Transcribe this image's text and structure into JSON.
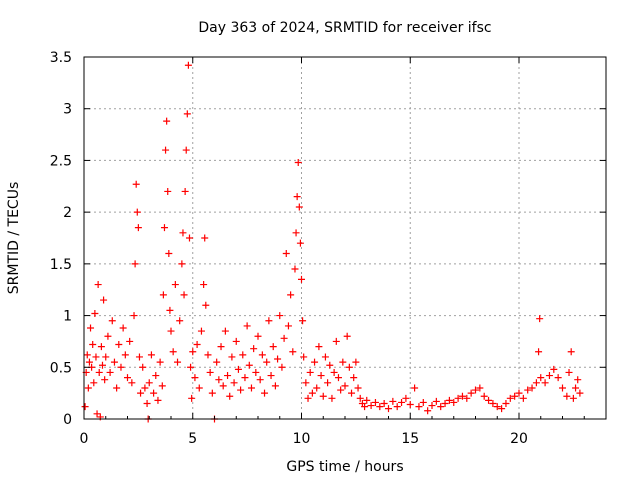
{
  "chart_data": {
    "type": "scatter",
    "title": "Day 363 of 2024, SRMTID for receiver ifsc",
    "xlabel": "GPS time / hours",
    "ylabel": "SRMTID / TECUs",
    "xlim": [
      0,
      24
    ],
    "ylim": [
      0,
      3.5
    ],
    "grid": true,
    "marker": "+",
    "x_ticks": [
      0,
      5,
      10,
      15,
      20
    ],
    "x_tick_labels": [
      "0",
      "5",
      "10",
      "15",
      "20"
    ],
    "y_ticks": [
      0,
      0.5,
      1,
      1.5,
      2,
      2.5,
      3,
      3.5
    ],
    "y_tick_labels": [
      "0",
      "0.5",
      "1",
      "1.5",
      "2",
      "2.5",
      "3",
      "3.5"
    ],
    "series": [
      {
        "name": "SRMTID",
        "color": "#ff0000",
        "points": [
          [
            0.05,
            0.12
          ],
          [
            0.1,
            0.45
          ],
          [
            0.15,
            0.62
          ],
          [
            0.2,
            0.3
          ],
          [
            0.25,
            0.55
          ],
          [
            0.3,
            0.88
          ],
          [
            0.35,
            0.5
          ],
          [
            0.4,
            0.72
          ],
          [
            0.45,
            0.35
          ],
          [
            0.5,
            1.02
          ],
          [
            0.55,
            0.6
          ],
          [
            0.6,
            0.05
          ],
          [
            0.65,
            1.3
          ],
          [
            0.7,
            0.45
          ],
          [
            0.75,
            0.02
          ],
          [
            0.8,
            0.7
          ],
          [
            0.85,
            0.52
          ],
          [
            0.9,
            1.15
          ],
          [
            0.95,
            0.38
          ],
          [
            1.0,
            0.6
          ],
          [
            1.1,
            0.8
          ],
          [
            1.2,
            0.45
          ],
          [
            1.3,
            0.95
          ],
          [
            1.4,
            0.55
          ],
          [
            1.5,
            0.3
          ],
          [
            1.6,
            0.72
          ],
          [
            1.7,
            0.5
          ],
          [
            1.8,
            0.88
          ],
          [
            1.9,
            0.62
          ],
          [
            2.0,
            0.4
          ],
          [
            2.1,
            0.75
          ],
          [
            2.2,
            0.35
          ],
          [
            2.3,
            1.0
          ],
          [
            2.35,
            1.5
          ],
          [
            2.4,
            2.27
          ],
          [
            2.45,
            2.0
          ],
          [
            2.5,
            1.85
          ],
          [
            2.55,
            0.6
          ],
          [
            2.6,
            0.25
          ],
          [
            2.7,
            0.5
          ],
          [
            2.8,
            0.3
          ],
          [
            2.9,
            0.15
          ],
          [
            2.95,
            0.0
          ],
          [
            3.0,
            0.35
          ],
          [
            3.1,
            0.62
          ],
          [
            3.2,
            0.25
          ],
          [
            3.3,
            0.42
          ],
          [
            3.4,
            0.18
          ],
          [
            3.5,
            0.55
          ],
          [
            3.6,
            0.32
          ],
          [
            3.65,
            1.2
          ],
          [
            3.7,
            1.85
          ],
          [
            3.75,
            2.6
          ],
          [
            3.8,
            2.88
          ],
          [
            3.85,
            2.2
          ],
          [
            3.9,
            1.6
          ],
          [
            3.95,
            1.05
          ],
          [
            4.0,
            0.85
          ],
          [
            4.1,
            0.65
          ],
          [
            4.2,
            1.3
          ],
          [
            4.3,
            0.55
          ],
          [
            4.4,
            0.95
          ],
          [
            4.5,
            1.5
          ],
          [
            4.55,
            1.8
          ],
          [
            4.6,
            1.2
          ],
          [
            4.65,
            2.2
          ],
          [
            4.7,
            2.6
          ],
          [
            4.75,
            2.95
          ],
          [
            4.8,
            3.42
          ],
          [
            4.85,
            1.75
          ],
          [
            4.9,
            0.5
          ],
          [
            4.95,
            0.2
          ],
          [
            5.0,
            0.65
          ],
          [
            5.1,
            0.4
          ],
          [
            5.2,
            0.72
          ],
          [
            5.3,
            0.3
          ],
          [
            5.4,
            0.85
          ],
          [
            5.5,
            1.3
          ],
          [
            5.55,
            1.75
          ],
          [
            5.6,
            1.1
          ],
          [
            5.7,
            0.62
          ],
          [
            5.8,
            0.45
          ],
          [
            5.9,
            0.25
          ],
          [
            6.0,
            0.0
          ],
          [
            6.1,
            0.55
          ],
          [
            6.2,
            0.38
          ],
          [
            6.3,
            0.7
          ],
          [
            6.4,
            0.32
          ],
          [
            6.5,
            0.85
          ],
          [
            6.6,
            0.42
          ],
          [
            6.7,
            0.22
          ],
          [
            6.8,
            0.6
          ],
          [
            6.9,
            0.35
          ],
          [
            7.0,
            0.75
          ],
          [
            7.1,
            0.48
          ],
          [
            7.2,
            0.28
          ],
          [
            7.3,
            0.62
          ],
          [
            7.4,
            0.4
          ],
          [
            7.5,
            0.9
          ],
          [
            7.6,
            0.52
          ],
          [
            7.7,
            0.3
          ],
          [
            7.8,
            0.68
          ],
          [
            7.9,
            0.45
          ],
          [
            8.0,
            0.8
          ],
          [
            8.1,
            0.38
          ],
          [
            8.2,
            0.62
          ],
          [
            8.3,
            0.25
          ],
          [
            8.4,
            0.55
          ],
          [
            8.5,
            0.95
          ],
          [
            8.6,
            0.42
          ],
          [
            8.7,
            0.7
          ],
          [
            8.8,
            0.32
          ],
          [
            8.9,
            0.58
          ],
          [
            9.0,
            1.0
          ],
          [
            9.1,
            0.5
          ],
          [
            9.2,
            0.78
          ],
          [
            9.3,
            1.6
          ],
          [
            9.4,
            0.9
          ],
          [
            9.5,
            1.2
          ],
          [
            9.6,
            0.65
          ],
          [
            9.7,
            1.45
          ],
          [
            9.75,
            1.8
          ],
          [
            9.8,
            2.15
          ],
          [
            9.85,
            2.48
          ],
          [
            9.9,
            2.05
          ],
          [
            9.95,
            1.7
          ],
          [
            10.0,
            1.35
          ],
          [
            10.05,
            0.95
          ],
          [
            10.1,
            0.6
          ],
          [
            10.2,
            0.35
          ],
          [
            10.3,
            0.2
          ],
          [
            10.4,
            0.45
          ],
          [
            10.5,
            0.25
          ],
          [
            10.6,
            0.55
          ],
          [
            10.7,
            0.3
          ],
          [
            10.8,
            0.7
          ],
          [
            10.9,
            0.42
          ],
          [
            11.0,
            0.22
          ],
          [
            11.1,
            0.6
          ],
          [
            11.2,
            0.35
          ],
          [
            11.3,
            0.52
          ],
          [
            11.4,
            0.2
          ],
          [
            11.5,
            0.45
          ],
          [
            11.6,
            0.75
          ],
          [
            11.7,
            0.4
          ],
          [
            11.8,
            0.28
          ],
          [
            11.9,
            0.55
          ],
          [
            12.0,
            0.32
          ],
          [
            12.1,
            0.8
          ],
          [
            12.2,
            0.5
          ],
          [
            12.3,
            0.25
          ],
          [
            12.4,
            0.4
          ],
          [
            12.5,
            0.55
          ],
          [
            12.6,
            0.3
          ],
          [
            12.7,
            0.2
          ],
          [
            12.8,
            0.15
          ],
          [
            12.9,
            0.12
          ],
          [
            13.0,
            0.18
          ],
          [
            13.2,
            0.13
          ],
          [
            13.4,
            0.16
          ],
          [
            13.6,
            0.12
          ],
          [
            13.8,
            0.15
          ],
          [
            14.0,
            0.1
          ],
          [
            14.2,
            0.17
          ],
          [
            14.4,
            0.12
          ],
          [
            14.6,
            0.16
          ],
          [
            14.8,
            0.2
          ],
          [
            15.0,
            0.14
          ],
          [
            15.2,
            0.3
          ],
          [
            15.4,
            0.12
          ],
          [
            15.6,
            0.16
          ],
          [
            15.8,
            0.08
          ],
          [
            16.0,
            0.13
          ],
          [
            16.2,
            0.17
          ],
          [
            16.4,
            0.12
          ],
          [
            16.6,
            0.15
          ],
          [
            16.8,
            0.18
          ],
          [
            17.0,
            0.16
          ],
          [
            17.2,
            0.2
          ],
          [
            17.4,
            0.22
          ],
          [
            17.6,
            0.2
          ],
          [
            17.8,
            0.25
          ],
          [
            18.0,
            0.28
          ],
          [
            18.2,
            0.3
          ],
          [
            18.4,
            0.22
          ],
          [
            18.6,
            0.18
          ],
          [
            18.8,
            0.15
          ],
          [
            19.0,
            0.12
          ],
          [
            19.2,
            0.1
          ],
          [
            19.4,
            0.15
          ],
          [
            19.6,
            0.2
          ],
          [
            19.8,
            0.22
          ],
          [
            20.0,
            0.25
          ],
          [
            20.2,
            0.2
          ],
          [
            20.4,
            0.28
          ],
          [
            20.6,
            0.3
          ],
          [
            20.8,
            0.35
          ],
          [
            20.9,
            0.65
          ],
          [
            20.95,
            0.97
          ],
          [
            21.0,
            0.4
          ],
          [
            21.2,
            0.35
          ],
          [
            21.4,
            0.42
          ],
          [
            21.6,
            0.48
          ],
          [
            21.8,
            0.4
          ],
          [
            22.0,
            0.3
          ],
          [
            22.2,
            0.22
          ],
          [
            22.3,
            0.45
          ],
          [
            22.4,
            0.65
          ],
          [
            22.5,
            0.2
          ],
          [
            22.6,
            0.3
          ],
          [
            22.7,
            0.38
          ],
          [
            22.8,
            0.25
          ]
        ]
      }
    ]
  }
}
